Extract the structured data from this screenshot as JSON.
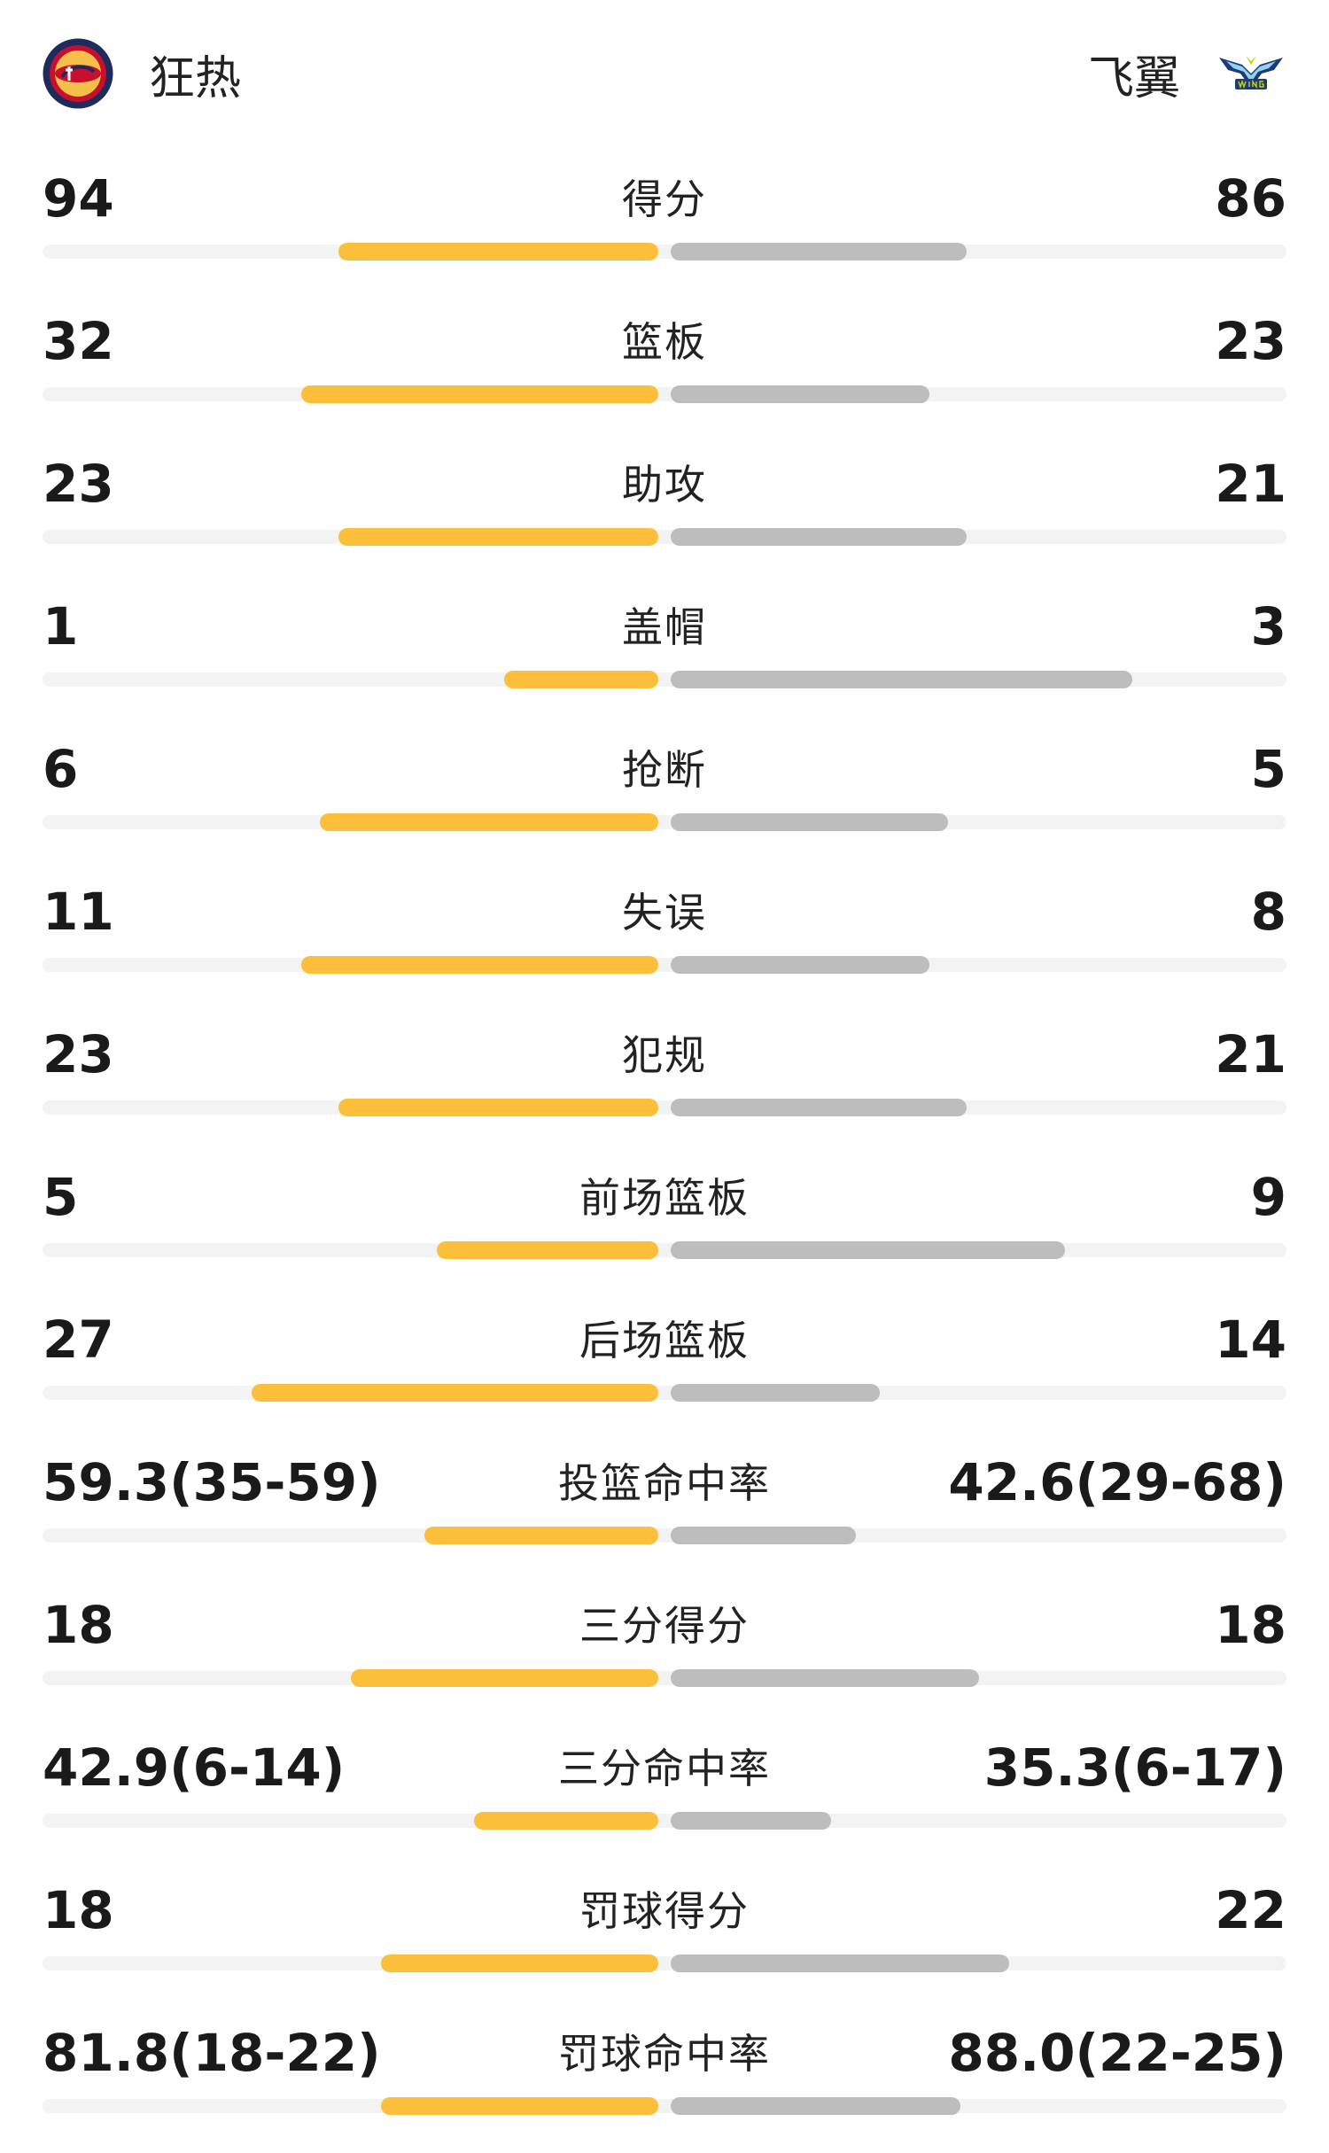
{
  "header": {
    "home_team": "狂热",
    "away_team": "飞翼",
    "home_logo_icon": "fever-logo-icon",
    "away_logo_icon": "wings-logo-icon"
  },
  "colors": {
    "home_bar": "#fbbf3b",
    "away_bar": "#bdbdbd",
    "track": "#f3f3f3"
  },
  "stats": [
    {
      "label": "得分",
      "home": "94",
      "away": "86",
      "home_fraction": 0.52,
      "away_fraction": 0.48
    },
    {
      "label": "篮板",
      "home": "32",
      "away": "23",
      "home_fraction": 0.58,
      "away_fraction": 0.42
    },
    {
      "label": "助攻",
      "home": "23",
      "away": "21",
      "home_fraction": 0.52,
      "away_fraction": 0.48
    },
    {
      "label": "盖帽",
      "home": "1",
      "away": "3",
      "home_fraction": 0.25,
      "away_fraction": 0.75
    },
    {
      "label": "抢断",
      "home": "6",
      "away": "5",
      "home_fraction": 0.55,
      "away_fraction": 0.45
    },
    {
      "label": "失误",
      "home": "11",
      "away": "8",
      "home_fraction": 0.58,
      "away_fraction": 0.42
    },
    {
      "label": "犯规",
      "home": "23",
      "away": "21",
      "home_fraction": 0.52,
      "away_fraction": 0.48
    },
    {
      "label": "前场篮板",
      "home": "5",
      "away": "9",
      "home_fraction": 0.36,
      "away_fraction": 0.64
    },
    {
      "label": "后场篮板",
      "home": "27",
      "away": "14",
      "home_fraction": 0.66,
      "away_fraction": 0.34
    },
    {
      "label": "投篮命中率",
      "home": "59.3(35-59)",
      "away": "42.6(29-68)",
      "home_fraction": 0.38,
      "away_fraction": 0.3
    },
    {
      "label": "三分得分",
      "home": "18",
      "away": "18",
      "home_fraction": 0.5,
      "away_fraction": 0.5
    },
    {
      "label": "三分命中率",
      "home": "42.9(6-14)",
      "away": "35.3(6-17)",
      "home_fraction": 0.3,
      "away_fraction": 0.26
    },
    {
      "label": "罚球得分",
      "home": "18",
      "away": "22",
      "home_fraction": 0.45,
      "away_fraction": 0.55
    },
    {
      "label": "罚球命中率",
      "home": "81.8(18-22)",
      "away": "88.0(22-25)",
      "home_fraction": 0.45,
      "away_fraction": 0.47
    }
  ]
}
